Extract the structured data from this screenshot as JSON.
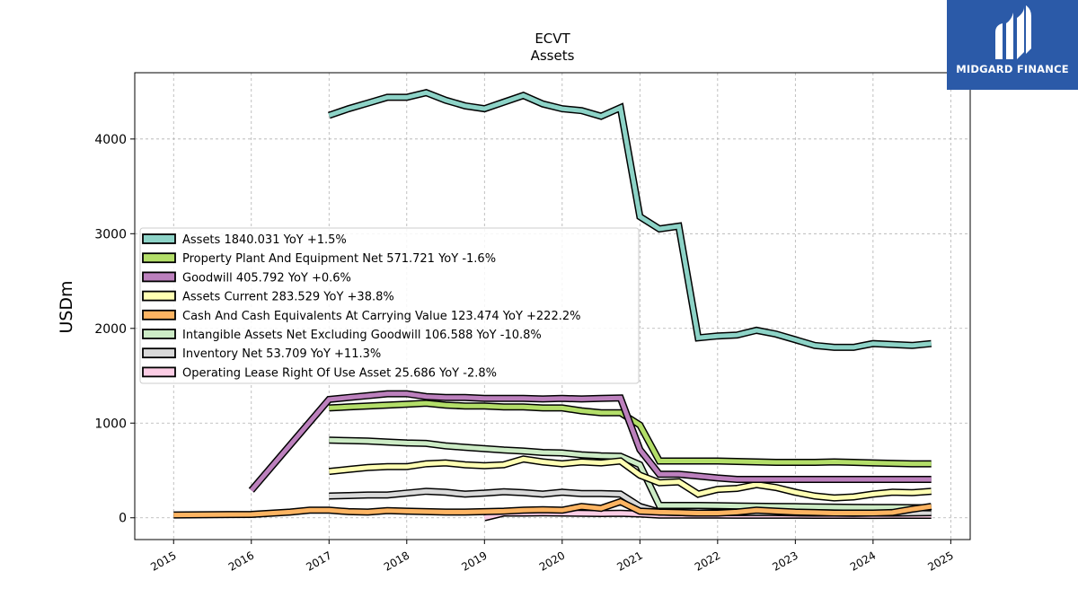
{
  "brand": {
    "name": "MIDGARD FINANCE",
    "logo_icon": "midgard-m-icon",
    "background_color": "#2b5aa8"
  },
  "chart_data": {
    "type": "line",
    "title": "ECVT",
    "subtitle": "Assets",
    "xlabel": "",
    "ylabel": "USDm",
    "xlim": [
      2014.5,
      2025.25
    ],
    "ylim": [
      -230,
      4700
    ],
    "x_ticks": [
      "2015",
      "2016",
      "2017",
      "2018",
      "2019",
      "2020",
      "2021",
      "2022",
      "2023",
      "2024",
      "2025"
    ],
    "y_ticks": [
      "0",
      "1000",
      "2000",
      "3000",
      "4000"
    ],
    "grid": true,
    "legend_position": "center-left",
    "series": [
      {
        "name": "Assets",
        "legend": "Assets  1840.031 YoY +1.5%",
        "color": "#8dd3c7",
        "points": [
          [
            2017.0,
            4250
          ],
          [
            2017.25,
            4320
          ],
          [
            2017.5,
            4380
          ],
          [
            2017.75,
            4440
          ],
          [
            2018.0,
            4440
          ],
          [
            2018.25,
            4490
          ],
          [
            2018.5,
            4410
          ],
          [
            2018.75,
            4350
          ],
          [
            2019.0,
            4320
          ],
          [
            2019.25,
            4390
          ],
          [
            2019.5,
            4460
          ],
          [
            2019.75,
            4370
          ],
          [
            2020.0,
            4320
          ],
          [
            2020.25,
            4300
          ],
          [
            2020.5,
            4240
          ],
          [
            2020.75,
            4330
          ],
          [
            2021.0,
            3180
          ],
          [
            2021.25,
            3050
          ],
          [
            2021.5,
            3080
          ],
          [
            2021.75,
            1900
          ],
          [
            2022.0,
            1920
          ],
          [
            2022.25,
            1930
          ],
          [
            2022.5,
            1980
          ],
          [
            2022.75,
            1940
          ],
          [
            2023.0,
            1880
          ],
          [
            2023.25,
            1820
          ],
          [
            2023.5,
            1800
          ],
          [
            2023.75,
            1800
          ],
          [
            2024.0,
            1840
          ],
          [
            2024.25,
            1830
          ],
          [
            2024.5,
            1820
          ],
          [
            2024.75,
            1840
          ]
        ]
      },
      {
        "name": "Property Plant And Equipment Net",
        "legend": "Property Plant And Equipment Net  571.721 YoY -1.6%",
        "color": "#b3de69",
        "points": [
          [
            2017.0,
            1160
          ],
          [
            2017.25,
            1170
          ],
          [
            2017.5,
            1180
          ],
          [
            2017.75,
            1190
          ],
          [
            2018.0,
            1200
          ],
          [
            2018.25,
            1210
          ],
          [
            2018.5,
            1190
          ],
          [
            2018.75,
            1180
          ],
          [
            2019.0,
            1180
          ],
          [
            2019.25,
            1170
          ],
          [
            2019.5,
            1170
          ],
          [
            2019.75,
            1160
          ],
          [
            2020.0,
            1160
          ],
          [
            2020.25,
            1130
          ],
          [
            2020.5,
            1110
          ],
          [
            2020.75,
            1110
          ],
          [
            2021.0,
            980
          ],
          [
            2021.25,
            600
          ],
          [
            2021.5,
            600
          ],
          [
            2021.75,
            600
          ],
          [
            2022.0,
            600
          ],
          [
            2022.25,
            595
          ],
          [
            2022.5,
            590
          ],
          [
            2022.75,
            585
          ],
          [
            2023.0,
            585
          ],
          [
            2023.25,
            585
          ],
          [
            2023.5,
            590
          ],
          [
            2023.75,
            585
          ],
          [
            2024.0,
            580
          ],
          [
            2024.25,
            575
          ],
          [
            2024.5,
            570
          ],
          [
            2024.75,
            570
          ]
        ]
      },
      {
        "name": "Goodwill",
        "legend": "Goodwill  405.792 YoY +0.6%",
        "color": "#bc80bd",
        "points": [
          [
            2016.0,
            290
          ],
          [
            2017.0,
            1250
          ],
          [
            2017.25,
            1270
          ],
          [
            2017.5,
            1290
          ],
          [
            2017.75,
            1310
          ],
          [
            2018.0,
            1310
          ],
          [
            2018.25,
            1280
          ],
          [
            2018.5,
            1270
          ],
          [
            2018.75,
            1270
          ],
          [
            2019.0,
            1260
          ],
          [
            2019.25,
            1260
          ],
          [
            2019.5,
            1260
          ],
          [
            2019.75,
            1255
          ],
          [
            2020.0,
            1260
          ],
          [
            2020.25,
            1255
          ],
          [
            2020.5,
            1260
          ],
          [
            2020.75,
            1265
          ],
          [
            2021.0,
            720
          ],
          [
            2021.25,
            460
          ],
          [
            2021.5,
            460
          ],
          [
            2021.75,
            440
          ],
          [
            2022.0,
            420
          ],
          [
            2022.25,
            405
          ],
          [
            2022.5,
            405
          ],
          [
            2022.75,
            405
          ],
          [
            2023.0,
            405
          ],
          [
            2023.25,
            405
          ],
          [
            2023.5,
            405
          ],
          [
            2023.75,
            405
          ],
          [
            2024.0,
            405
          ],
          [
            2024.25,
            405
          ],
          [
            2024.5,
            405
          ],
          [
            2024.75,
            405
          ]
        ]
      },
      {
        "name": "Assets Current",
        "legend": "Assets Current  283.529 YoY +38.8%",
        "color": "#ffffb3",
        "points": [
          [
            2017.0,
            490
          ],
          [
            2017.25,
            510
          ],
          [
            2017.5,
            530
          ],
          [
            2017.75,
            540
          ],
          [
            2018.0,
            540
          ],
          [
            2018.25,
            570
          ],
          [
            2018.5,
            580
          ],
          [
            2018.75,
            560
          ],
          [
            2019.0,
            550
          ],
          [
            2019.25,
            560
          ],
          [
            2019.5,
            620
          ],
          [
            2019.75,
            590
          ],
          [
            2020.0,
            570
          ],
          [
            2020.25,
            590
          ],
          [
            2020.5,
            580
          ],
          [
            2020.75,
            600
          ],
          [
            2021.0,
            450
          ],
          [
            2021.25,
            370
          ],
          [
            2021.5,
            380
          ],
          [
            2021.75,
            250
          ],
          [
            2022.0,
            300
          ],
          [
            2022.25,
            310
          ],
          [
            2022.5,
            350
          ],
          [
            2022.75,
            320
          ],
          [
            2023.0,
            270
          ],
          [
            2023.25,
            230
          ],
          [
            2023.5,
            210
          ],
          [
            2023.75,
            220
          ],
          [
            2024.0,
            250
          ],
          [
            2024.25,
            270
          ],
          [
            2024.5,
            265
          ],
          [
            2024.75,
            280
          ]
        ]
      },
      {
        "name": "Cash And Cash Equivalents At Carrying Value",
        "legend": "Cash And Cash Equivalents At Carrying Value  123.474 YoY +222.2%",
        "color": "#fdb462",
        "points": [
          [
            2015.0,
            30
          ],
          [
            2016.0,
            35
          ],
          [
            2016.5,
            60
          ],
          [
            2016.75,
            80
          ],
          [
            2017.0,
            80
          ],
          [
            2017.25,
            65
          ],
          [
            2017.5,
            60
          ],
          [
            2017.75,
            75
          ],
          [
            2018.0,
            70
          ],
          [
            2018.25,
            65
          ],
          [
            2018.5,
            60
          ],
          [
            2018.75,
            60
          ],
          [
            2019.0,
            65
          ],
          [
            2019.25,
            70
          ],
          [
            2019.5,
            80
          ],
          [
            2019.75,
            85
          ],
          [
            2020.0,
            80
          ],
          [
            2020.25,
            120
          ],
          [
            2020.5,
            100
          ],
          [
            2020.75,
            170
          ],
          [
            2021.0,
            70
          ],
          [
            2021.25,
            60
          ],
          [
            2021.5,
            55
          ],
          [
            2021.75,
            50
          ],
          [
            2022.0,
            50
          ],
          [
            2022.25,
            60
          ],
          [
            2022.5,
            80
          ],
          [
            2022.75,
            70
          ],
          [
            2023.0,
            60
          ],
          [
            2023.25,
            55
          ],
          [
            2023.5,
            50
          ],
          [
            2023.75,
            50
          ],
          [
            2024.0,
            50
          ],
          [
            2024.25,
            55
          ],
          [
            2024.5,
            90
          ],
          [
            2024.75,
            120
          ]
        ]
      },
      {
        "name": "Intangible Assets Net Excluding Goodwill",
        "legend": "Intangible Assets Net Excluding Goodwill  106.588 YoY -10.8%",
        "color": "#ccebc5",
        "points": [
          [
            2017.0,
            820
          ],
          [
            2017.25,
            815
          ],
          [
            2017.5,
            810
          ],
          [
            2017.75,
            800
          ],
          [
            2018.0,
            790
          ],
          [
            2018.25,
            785
          ],
          [
            2018.5,
            760
          ],
          [
            2018.75,
            745
          ],
          [
            2019.0,
            730
          ],
          [
            2019.25,
            715
          ],
          [
            2019.5,
            705
          ],
          [
            2019.75,
            690
          ],
          [
            2020.0,
            685
          ],
          [
            2020.25,
            665
          ],
          [
            2020.5,
            655
          ],
          [
            2020.75,
            650
          ],
          [
            2021.0,
            560
          ],
          [
            2021.25,
            130
          ],
          [
            2021.5,
            130
          ],
          [
            2021.75,
            130
          ],
          [
            2022.0,
            128
          ],
          [
            2022.25,
            125
          ],
          [
            2022.5,
            122
          ],
          [
            2022.75,
            120
          ],
          [
            2023.0,
            118
          ],
          [
            2023.25,
            115
          ],
          [
            2023.5,
            112
          ],
          [
            2023.75,
            110
          ],
          [
            2024.0,
            108
          ],
          [
            2024.25,
            108
          ],
          [
            2024.5,
            107
          ],
          [
            2024.75,
            106
          ]
        ]
      },
      {
        "name": "Inventory Net",
        "legend": "Inventory Net  53.709 YoY +11.3%",
        "color": "#d9d9d9",
        "points": [
          [
            2017.0,
            230
          ],
          [
            2017.25,
            235
          ],
          [
            2017.5,
            240
          ],
          [
            2017.75,
            240
          ],
          [
            2018.0,
            260
          ],
          [
            2018.25,
            280
          ],
          [
            2018.5,
            270
          ],
          [
            2018.75,
            250
          ],
          [
            2019.0,
            260
          ],
          [
            2019.25,
            275
          ],
          [
            2019.5,
            265
          ],
          [
            2019.75,
            250
          ],
          [
            2020.0,
            270
          ],
          [
            2020.25,
            255
          ],
          [
            2020.5,
            255
          ],
          [
            2020.75,
            250
          ],
          [
            2021.0,
            120
          ],
          [
            2021.25,
            60
          ],
          [
            2021.5,
            55
          ],
          [
            2021.75,
            50
          ],
          [
            2022.0,
            55
          ],
          [
            2022.25,
            55
          ],
          [
            2022.5,
            55
          ],
          [
            2022.75,
            55
          ],
          [
            2023.0,
            52
          ],
          [
            2023.25,
            50
          ],
          [
            2023.5,
            50
          ],
          [
            2023.75,
            48
          ],
          [
            2024.0,
            50
          ],
          [
            2024.25,
            50
          ],
          [
            2024.5,
            52
          ],
          [
            2024.75,
            54
          ]
        ]
      },
      {
        "name": "Operating Lease Right Of Use Asset",
        "legend": "Operating Lease Right Of Use Asset  25.686 YoY -2.8%",
        "color": "#fccde5",
        "points": [
          [
            2019.0,
            0
          ],
          [
            2019.25,
            50
          ],
          [
            2019.5,
            50
          ],
          [
            2019.75,
            52
          ],
          [
            2020.0,
            50
          ],
          [
            2020.25,
            48
          ],
          [
            2020.5,
            45
          ],
          [
            2020.75,
            48
          ],
          [
            2021.0,
            40
          ],
          [
            2021.25,
            28
          ],
          [
            2021.5,
            28
          ],
          [
            2021.75,
            28
          ],
          [
            2022.0,
            28
          ],
          [
            2022.25,
            27
          ],
          [
            2022.5,
            27
          ],
          [
            2022.75,
            27
          ],
          [
            2023.0,
            27
          ],
          [
            2023.25,
            26
          ],
          [
            2023.5,
            26
          ],
          [
            2023.75,
            26
          ],
          [
            2024.0,
            25
          ],
          [
            2024.25,
            26
          ],
          [
            2024.5,
            26
          ],
          [
            2024.75,
            26
          ]
        ]
      }
    ]
  }
}
